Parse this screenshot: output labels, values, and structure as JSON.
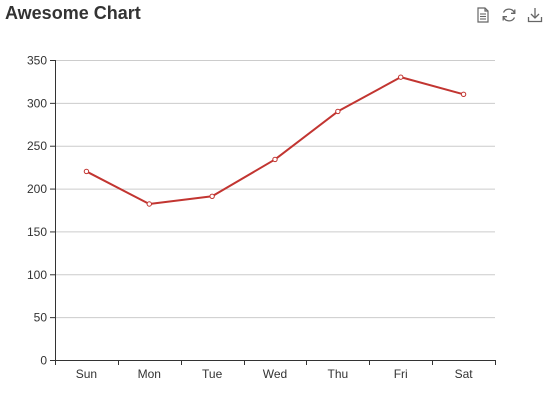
{
  "title": "Awesome Chart",
  "toolbar": {
    "icons": [
      "data-view-icon",
      "restore-icon",
      "save-as-image-icon"
    ]
  },
  "colors": {
    "series": "#c23531",
    "axis": "#333333",
    "grid": "#cccccc",
    "title": "#333333"
  },
  "chart_data": {
    "type": "line",
    "title": "Awesome Chart",
    "xlabel": "",
    "ylabel": "",
    "categories": [
      "Sun",
      "Mon",
      "Tue",
      "Wed",
      "Thu",
      "Fri",
      "Sat"
    ],
    "series": [
      {
        "values": [
          220,
          182,
          191,
          234,
          290,
          330,
          310
        ]
      }
    ],
    "ylim": [
      0,
      350
    ],
    "yticks": [
      0,
      50,
      100,
      150,
      200,
      250,
      300,
      350
    ],
    "grid": true,
    "legend": "none"
  }
}
